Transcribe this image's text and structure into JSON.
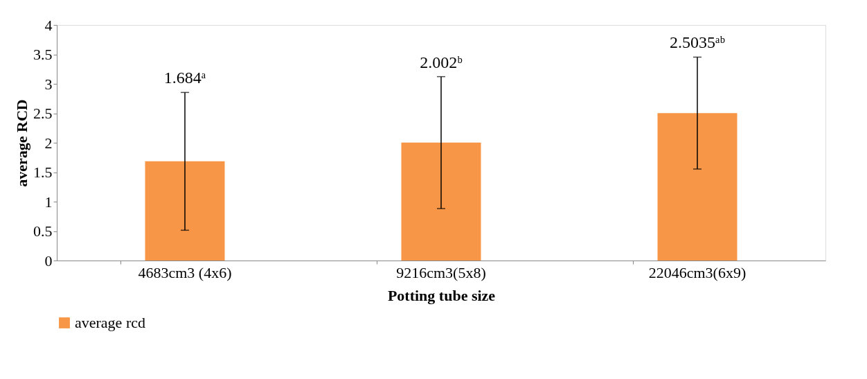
{
  "chart_data": {
    "type": "bar",
    "xlabel": "Potting tube size",
    "ylabel": "average RCD",
    "categories": [
      "4683cm3 (4x6)",
      "9216cm3(5x8)",
      "22046cm3(6x9)"
    ],
    "series": [
      {
        "name": "average rcd",
        "color": "#f79646",
        "values": [
          1.684,
          2.002,
          2.5035
        ],
        "errors": [
          1.17,
          1.12,
          0.95
        ]
      }
    ],
    "value_labels": [
      "1.684ᵃ",
      "2.002ᵇ",
      "2.5035ᵃᵇ"
    ],
    "ylim": [
      0,
      4
    ],
    "yticks": [
      0,
      0.5,
      1,
      1.5,
      2,
      2.5,
      3,
      3.5,
      4
    ],
    "grid": false,
    "legend": "bottom"
  }
}
